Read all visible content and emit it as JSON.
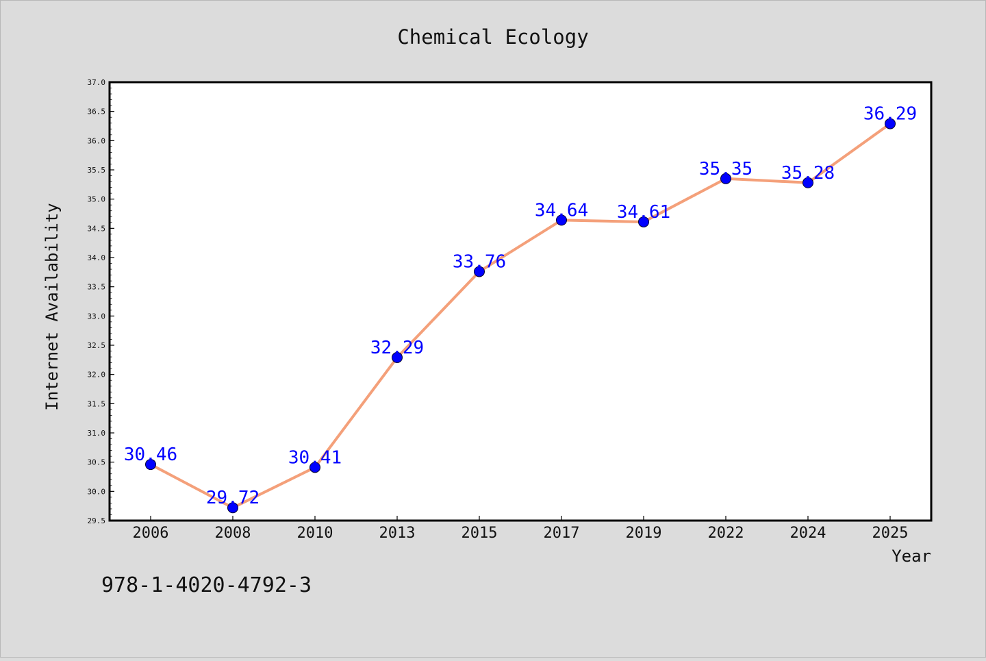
{
  "chart_data": {
    "type": "line",
    "title": "Chemical Ecology",
    "xlabel": "Year",
    "ylabel": "Internet Availability",
    "categories": [
      "2006",
      "2008",
      "2010",
      "2013",
      "2015",
      "2017",
      "2019",
      "2022",
      "2024",
      "2025"
    ],
    "values": [
      30.46,
      29.72,
      30.41,
      32.29,
      33.76,
      34.64,
      34.61,
      35.35,
      35.28,
      36.29
    ],
    "data_labels": [
      "30.46",
      "29.72",
      "30.41",
      "32.29",
      "33.76",
      "34.64",
      "34.61",
      "35.35",
      "35.28",
      "36.29"
    ],
    "ylim": [
      29.5,
      37.0
    ],
    "yticks": [
      "29.5",
      "30.0",
      "30.5",
      "31.0",
      "31.5",
      "32.0",
      "32.5",
      "33.0",
      "33.5",
      "34.0",
      "34.5",
      "35.0",
      "35.5",
      "36.0",
      "36.5",
      "37.0"
    ],
    "grid": false,
    "legend": "none",
    "colors": {
      "line": "#f4a07a",
      "marker": "#0000ff",
      "data_label": "#0000ff",
      "plot_background": "#ffffff",
      "figure_background": "#dcdcdc"
    }
  },
  "annotation": "978-1-4020-4792-3"
}
